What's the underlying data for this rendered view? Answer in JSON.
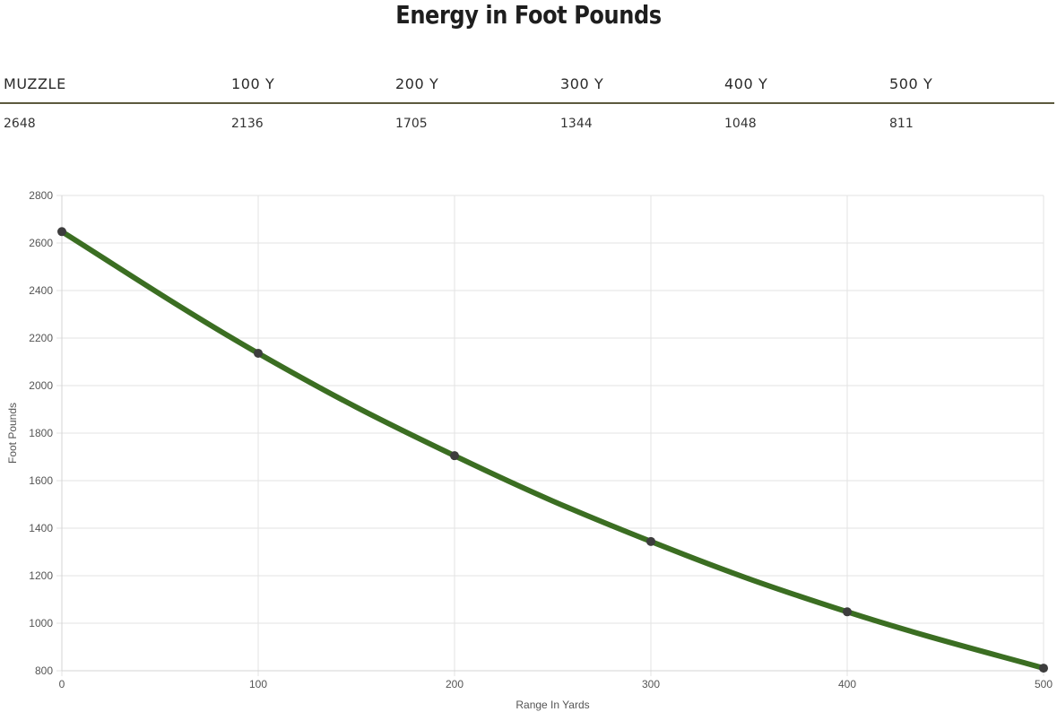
{
  "page": {
    "title": "Energy in Foot Pounds"
  },
  "table": {
    "headers": [
      "MUZZLE",
      "100 Y",
      "200 Y",
      "300 Y",
      "400 Y",
      "500 Y"
    ],
    "values": [
      "2648",
      "2136",
      "1705",
      "1344",
      "1048",
      "811"
    ]
  },
  "colors": {
    "line": "#3b6e22",
    "point": "#3d3d3d",
    "grid": "#e3e3e3",
    "table_rule": "#5c5a3e"
  },
  "chart_data": {
    "type": "line",
    "title": "",
    "xlabel": "Range In Yards",
    "ylabel": "Foot Pounds",
    "x": [
      0,
      100,
      200,
      300,
      400,
      500
    ],
    "series": [
      {
        "name": "Energy",
        "values": [
          2648,
          2136,
          1705,
          1344,
          1048,
          811
        ]
      }
    ],
    "xlim": [
      0,
      500
    ],
    "ylim": [
      800,
      2800
    ],
    "x_ticks": [
      0,
      100,
      200,
      300,
      400,
      500
    ],
    "y_ticks": [
      800,
      1000,
      1200,
      1400,
      1600,
      1800,
      2000,
      2200,
      2400,
      2600,
      2800
    ],
    "grid": true,
    "legend": "none"
  }
}
